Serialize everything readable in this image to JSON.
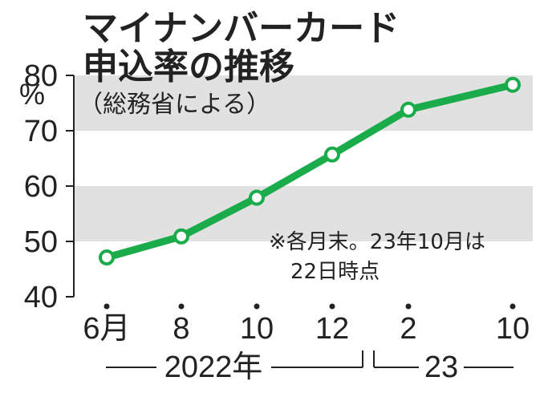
{
  "chart_data": {
    "type": "line",
    "title_line1": "マイナンバーカード",
    "title_line2": "申込率の推移",
    "source": "（総務省による）",
    "ylabel": "%",
    "ylim": [
      40,
      80
    ],
    "y_ticks": [
      "40",
      "50",
      "60",
      "70",
      "80"
    ],
    "x_tick_labels": [
      "6月",
      "8",
      "10",
      "12",
      "2",
      "10"
    ],
    "x": [
      "2022-06",
      "2022-08",
      "2022-10",
      "2022-12",
      "2023-02",
      "2023-10"
    ],
    "values": [
      47.1,
      50.9,
      57.9,
      65.7,
      73.8,
      78.3
    ],
    "period_labels": [
      "2022年",
      "23"
    ],
    "note_line1": "※各月末。23年10月は",
    "note_line2": "22日時点",
    "colors": {
      "line": "#1aab4b",
      "band": "#e1e1e1",
      "text": "#222222"
    },
    "grid": "alternating bands"
  }
}
